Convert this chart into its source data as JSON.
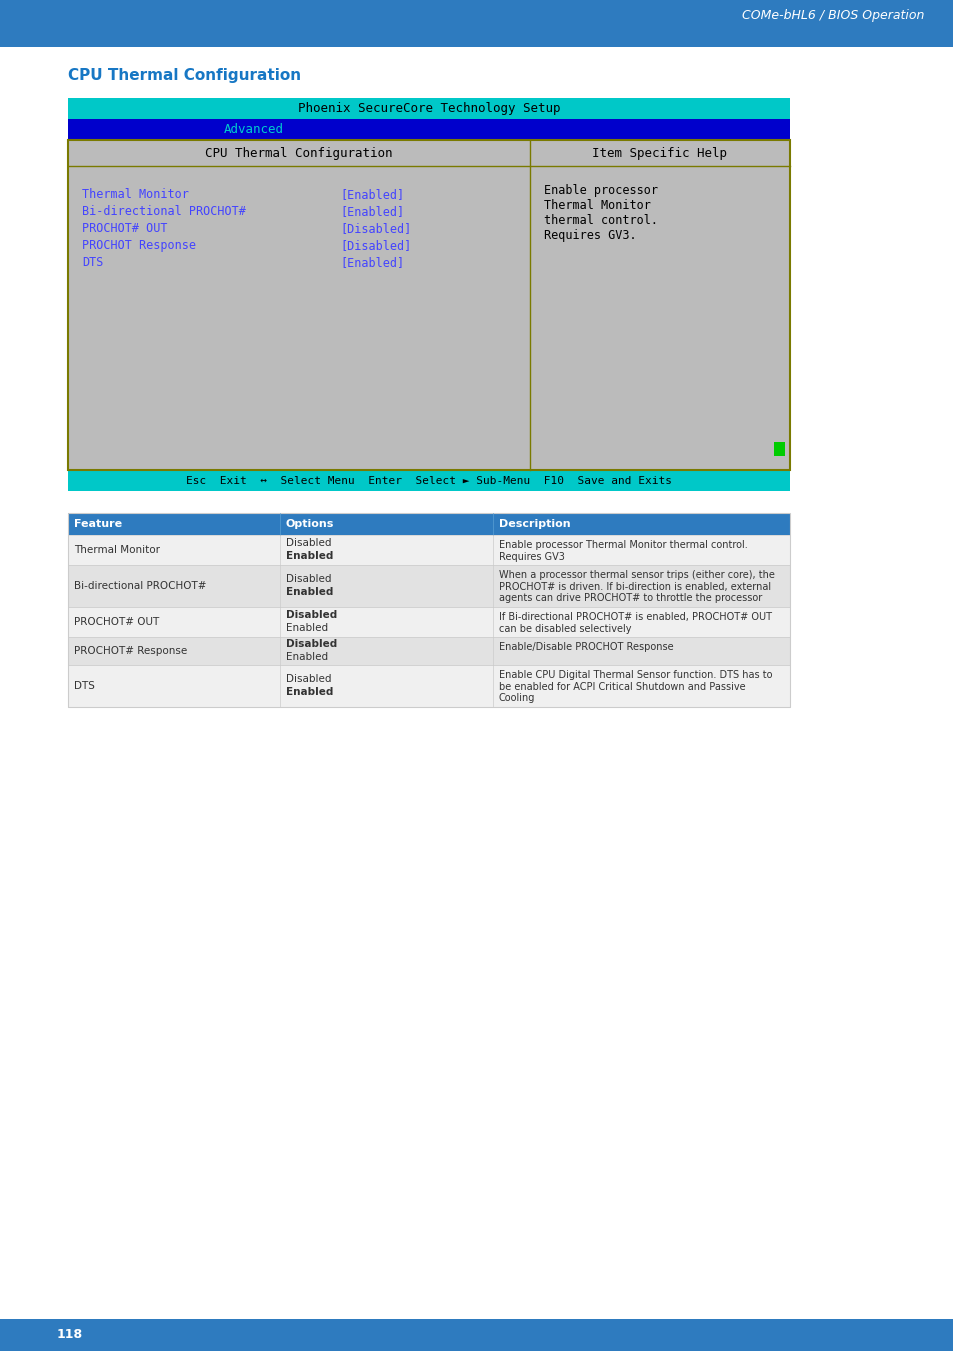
{
  "page_header_text": "COMe-bHL6 / BIOS Operation",
  "page_header_bg": "#2e7bbf",
  "section_title": "CPU Thermal Configuration",
  "section_title_color": "#1777c4",
  "bios_title_bar_text": "Phoenix SecureCore Technology Setup",
  "bios_title_bar_bg": "#00c8c8",
  "bios_title_bar_text_color": "#000000",
  "bios_nav_bar_bg": "#0000cc",
  "bios_nav_item": "Advanced",
  "bios_nav_item_color": "#00cccc",
  "bios_body_bg": "#bbbbbb",
  "bios_left_panel_title": "CPU Thermal Configuration",
  "bios_right_panel_title": "Item Specific Help",
  "bios_panel_title_color": "#000000",
  "bios_entries": [
    {
      "label": "Thermal Monitor",
      "value": "[Enabled]"
    },
    {
      "label": "Bi-directional PROCHOT#",
      "value": "[Enabled]"
    },
    {
      "label": "PROCHOT# OUT",
      "value": "[Disabled]"
    },
    {
      "label": "PROCHOT Response",
      "value": "[Disabled]"
    },
    {
      "label": "DTS",
      "value": "[Enabled]"
    }
  ],
  "bios_entry_color": "#4444ff",
  "bios_help_lines": [
    "Enable processor",
    "Thermal Monitor",
    "thermal control.",
    "Requires GV3."
  ],
  "bios_help_color": "#000000",
  "bios_footer_bg": "#00c8c8",
  "bios_footer_text": "Esc  Exit  ↔  Select Menu  Enter  Select ► Sub-Menu  F10  Save and Exits",
  "bios_footer_color": "#000000",
  "bios_scrollbar_color": "#00cc00",
  "bios_border_color": "#7a7a00",
  "table_header_bg": "#2e7bbf",
  "table_header_color": "#ffffff",
  "table_col_headers": [
    "Feature",
    "Options",
    "Description"
  ],
  "table_rows": [
    {
      "feature": "Thermal Monitor",
      "opt1": "Disabled",
      "opt2": "Enabled",
      "opt_bold": 2,
      "description": "Enable processor Thermal Monitor thermal control.\nRequires GV3"
    },
    {
      "feature": "Bi-directional PROCHOT#",
      "opt1": "Disabled",
      "opt2": "Enabled",
      "opt_bold": 2,
      "description": "When a processor thermal sensor trips (either core), the\nPROCHOT# is driven. If bi-direction is enabled, external\nagents can drive PROCHOT# to throttle the processor"
    },
    {
      "feature": "PROCHOT# OUT",
      "opt1": "Disabled",
      "opt2": "Enabled",
      "opt_bold": 1,
      "description": "If Bi-directional PROCHOT# is enabled, PROCHOT# OUT\ncan be disabled selectively"
    },
    {
      "feature": "PROCHOT# Response",
      "opt1": "Disabled",
      "opt2": "Enabled",
      "opt_bold": 1,
      "description": "Enable/Disable PROCHOT Response"
    },
    {
      "feature": "DTS",
      "opt1": "Disabled",
      "opt2": "Enabled",
      "opt_bold": 2,
      "description": "Enable CPU Digital Thermal Sensor function. DTS has to\nbe enabled for ACPI Critical Shutdown and Passive\nCooling"
    }
  ],
  "table_row_bg_odd": "#f0f0f0",
  "table_row_bg_even": "#e2e2e2",
  "table_border_color": "#cccccc",
  "page_footer_bg": "#2e7bbf",
  "page_number": "118",
  "page_number_color": "#ffffff"
}
